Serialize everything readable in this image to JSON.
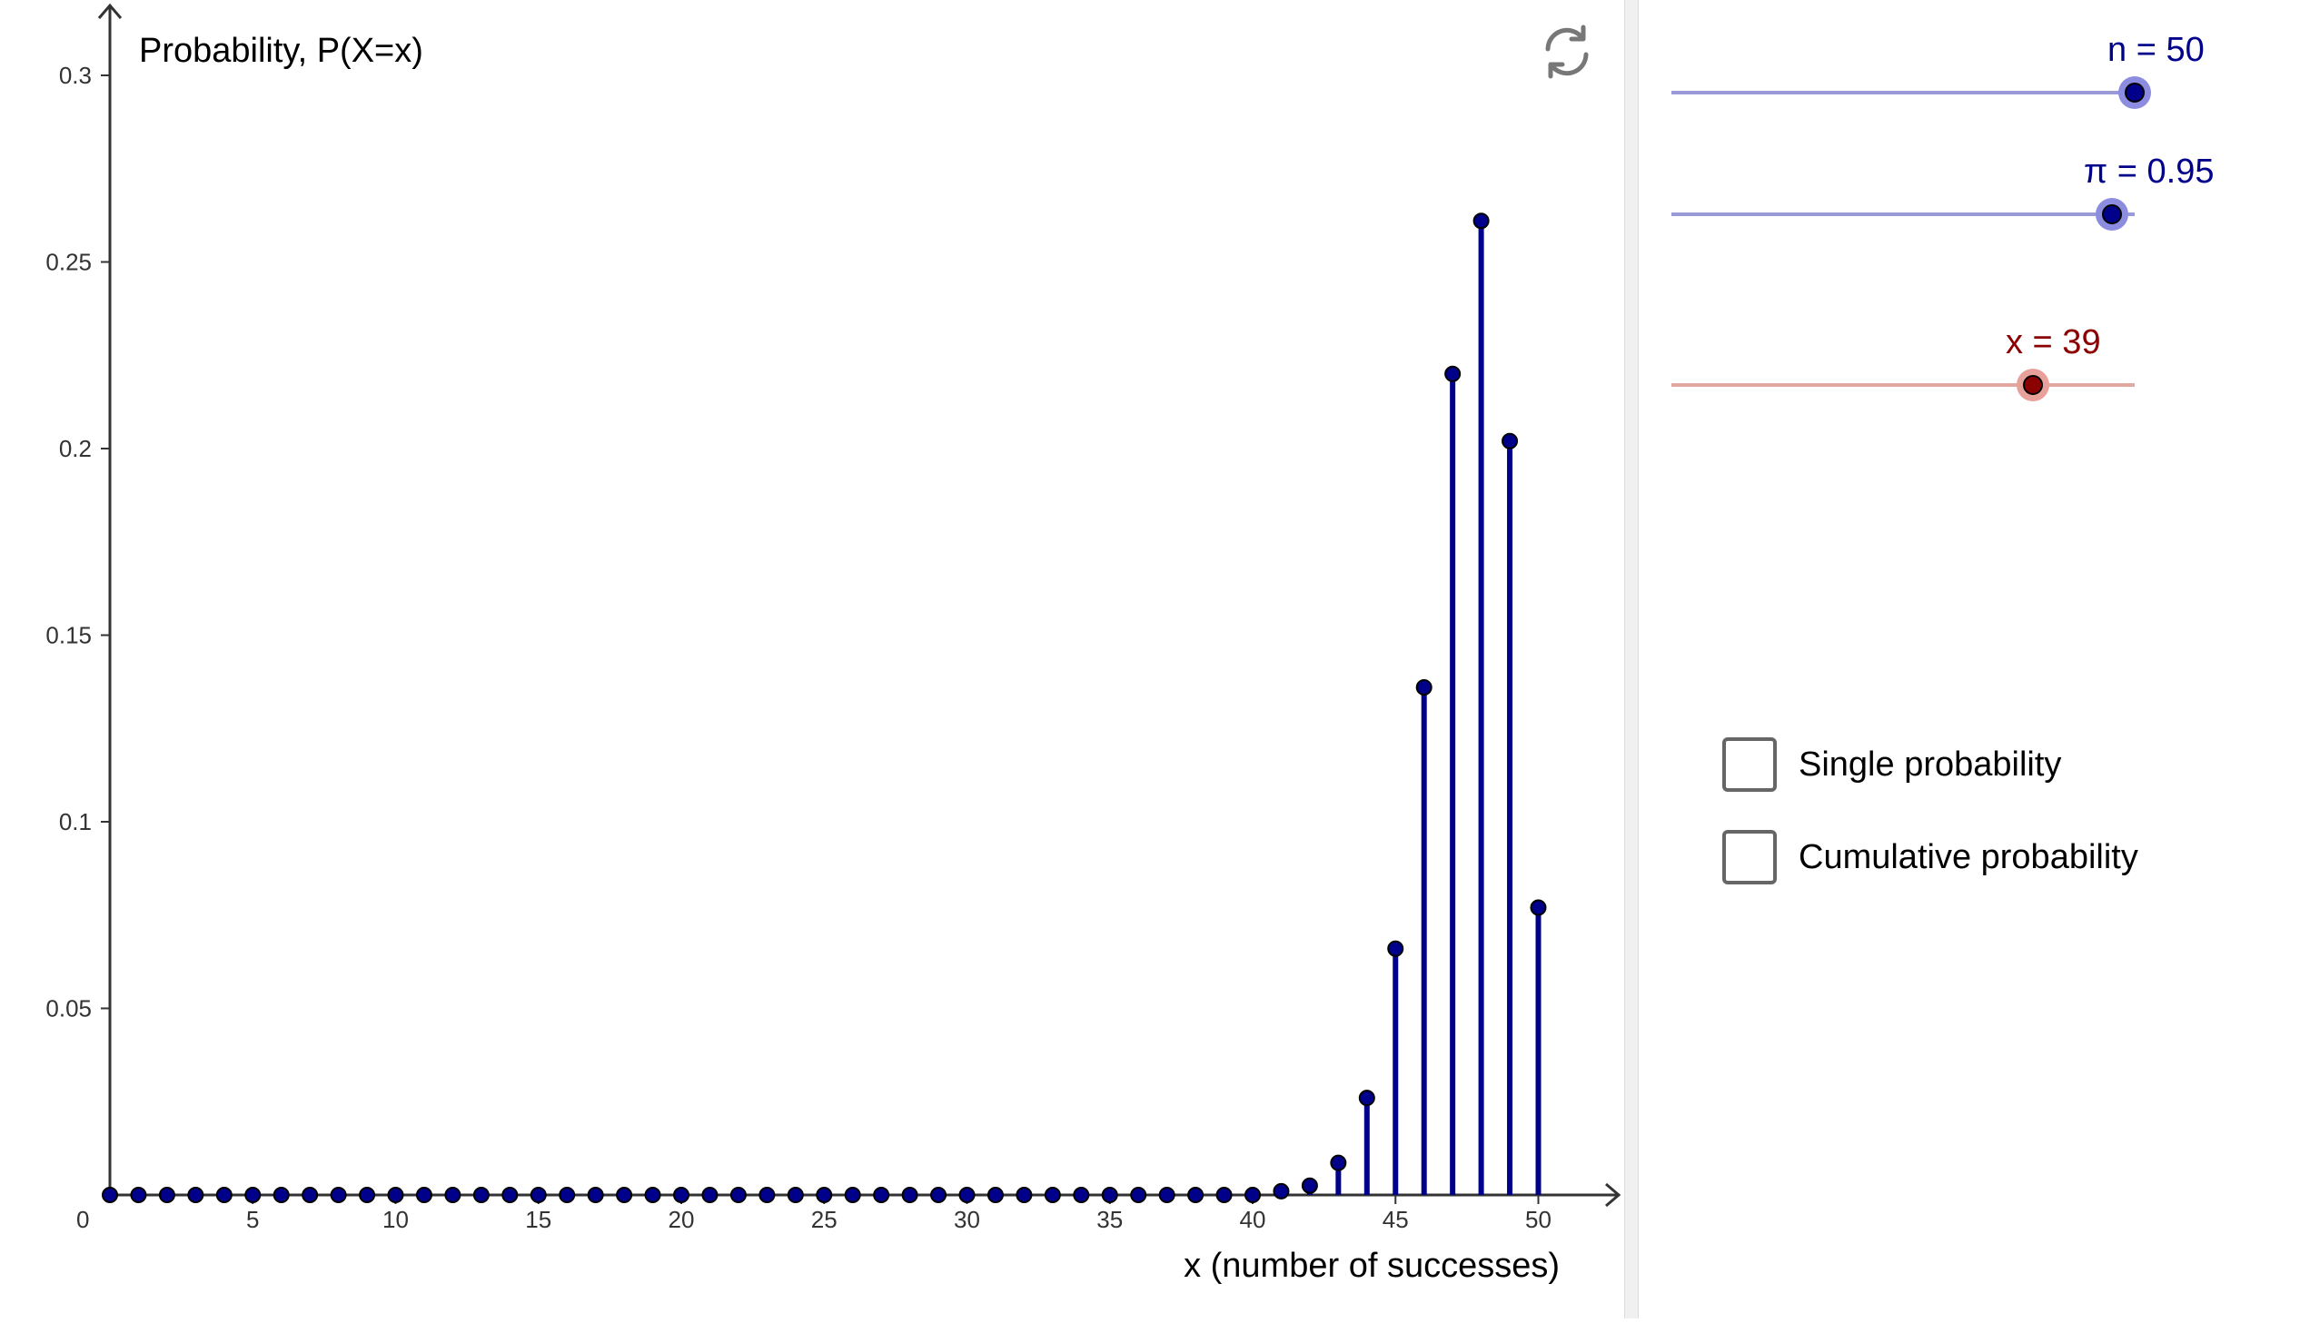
{
  "graph": {
    "y_axis_label": "Probability, P(X=x)",
    "x_axis_label": "x (number of successes)",
    "origin_label": "0",
    "x_ticks": [
      "5",
      "10",
      "15",
      "20",
      "25",
      "30",
      "35",
      "40",
      "45",
      "50"
    ],
    "y_ticks": [
      "0.05",
      "0.1",
      "0.15",
      "0.2",
      "0.25",
      "0.3"
    ],
    "bar_color": "#00008b"
  },
  "chart_data": {
    "type": "bar",
    "xlabel": "x (number of successes)",
    "ylabel": "Probability, P(X=x)",
    "xlim": [
      0,
      52.5
    ],
    "ylim": [
      0,
      0.3
    ],
    "x": [
      41,
      42,
      43,
      44,
      45,
      46,
      47,
      48,
      49,
      50
    ],
    "values": [
      0.001,
      0.0025,
      0.0086,
      0.026,
      0.066,
      0.136,
      0.22,
      0.261,
      0.202,
      0.077
    ],
    "zero_points": [
      0,
      1,
      2,
      3,
      4,
      5,
      6,
      7,
      8,
      9,
      10,
      11,
      12,
      13,
      14,
      15,
      16,
      17,
      18,
      19,
      20,
      21,
      22,
      23,
      24,
      25,
      26,
      27,
      28,
      29,
      30,
      31,
      32,
      33,
      34,
      35,
      36,
      37,
      38,
      39,
      40
    ],
    "grid": false
  },
  "sliders": [
    {
      "label": "n = 50",
      "value": 50,
      "min": 1,
      "max": 50,
      "color": "#00008b",
      "track_color": "#9a9ad8",
      "knob_ring": "#8c8ce0"
    },
    {
      "label": "π = 0.95",
      "value": 0.95,
      "min": 0,
      "max": 1,
      "color": "#00008b",
      "track_color": "#9a9ad8",
      "knob_ring": "#8c8ce0"
    },
    {
      "label": "x = 39",
      "value": 39,
      "min": 0,
      "max": 50,
      "color": "#8b0000",
      "track_color": "#e0a8a0",
      "knob_ring": "#e8a09a"
    }
  ],
  "checkboxes": [
    {
      "label": "Single probability",
      "checked": false
    },
    {
      "label": "Cumulative probability",
      "checked": false
    }
  ],
  "icons": {
    "refresh": "refresh-icon"
  }
}
